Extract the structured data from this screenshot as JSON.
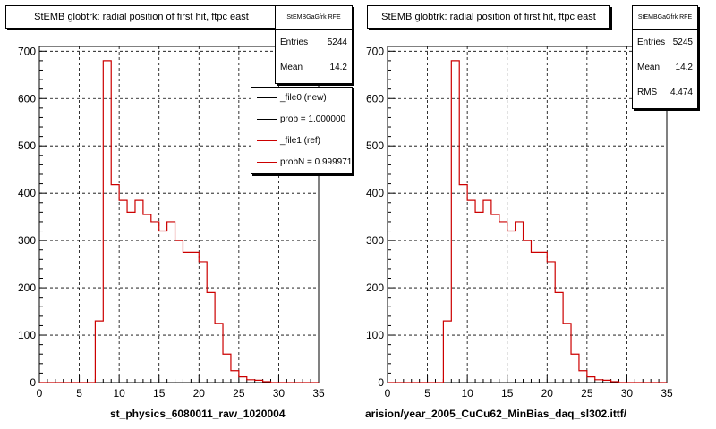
{
  "left_panel": {
    "title": "StEMB globtrk: radial position of first hit, ftpc east",
    "stats": {
      "header": "StEMBGaGfrk RFE",
      "rows": [
        {
          "label": "Entries",
          "value": "5244"
        },
        {
          "label": "Mean",
          "value": "14.2"
        }
      ]
    },
    "legend": [
      {
        "label": "_file0 (new)",
        "color": "#000000"
      },
      {
        "label": "prob = 1.000000",
        "color": "#000000"
      },
      {
        "label": "_file1 (ref)",
        "color": "#cc0000"
      },
      {
        "label": "probN = 0.999971",
        "color": "#cc0000"
      }
    ],
    "xfile": "st_physics_6080011_raw_1020004"
  },
  "right_panel": {
    "title": "StEMB globtrk: radial position of first hit, ftpc east",
    "stats": {
      "header": "StEMBGaGfrk RFE",
      "rows": [
        {
          "label": "Entries",
          "value": "5245"
        },
        {
          "label": "Mean",
          "value": "14.2"
        },
        {
          "label": "RMS",
          "value": "4.474"
        }
      ]
    },
    "xfile": "arision/year_2005_CuCu62_MinBias_daq_sl302.ittf/"
  },
  "colors": {
    "hist_red": "#cc0000",
    "axis": "#000000",
    "grid": "#000000"
  },
  "chart_data": [
    {
      "type": "bar",
      "title": "StEMB globtrk: radial position of first hit, ftpc east",
      "xlim": [
        0,
        35
      ],
      "ylim": [
        0,
        710
      ],
      "xticks": [
        0,
        5,
        10,
        15,
        20,
        25,
        30,
        35
      ],
      "yticks": [
        0,
        100,
        200,
        300,
        400,
        500,
        600,
        700
      ],
      "grid": true,
      "bin_edges": [
        0,
        1,
        2,
        3,
        4,
        5,
        6,
        7,
        8,
        9,
        10,
        11,
        12,
        13,
        14,
        15,
        16,
        17,
        18,
        19,
        20,
        21,
        22,
        23,
        24,
        25,
        26,
        27,
        28,
        29,
        30,
        31,
        32,
        33,
        34,
        35
      ],
      "values": [
        0,
        0,
        0,
        0,
        0,
        0,
        0,
        130,
        680,
        418,
        385,
        360,
        385,
        355,
        340,
        320,
        340,
        300,
        275,
        275,
        255,
        190,
        125,
        60,
        25,
        12,
        6,
        5,
        2,
        0,
        0,
        0,
        0,
        0,
        0
      ],
      "series": [
        {
          "name": "_file0 (new)",
          "color": "#000000"
        },
        {
          "name": "_file1 (ref)",
          "color": "#cc0000"
        }
      ]
    },
    {
      "type": "bar",
      "title": "StEMB globtrk: radial position of first hit, ftpc east",
      "xlim": [
        0,
        35
      ],
      "ylim": [
        0,
        710
      ],
      "xticks": [
        0,
        5,
        10,
        15,
        20,
        25,
        30,
        35
      ],
      "yticks": [
        0,
        100,
        200,
        300,
        400,
        500,
        600,
        700
      ],
      "grid": true,
      "bin_edges": [
        0,
        1,
        2,
        3,
        4,
        5,
        6,
        7,
        8,
        9,
        10,
        11,
        12,
        13,
        14,
        15,
        16,
        17,
        18,
        19,
        20,
        21,
        22,
        23,
        24,
        25,
        26,
        27,
        28,
        29,
        30,
        31,
        32,
        33,
        34,
        35
      ],
      "values": [
        0,
        0,
        0,
        0,
        0,
        0,
        0,
        130,
        680,
        418,
        385,
        360,
        385,
        355,
        340,
        320,
        340,
        300,
        275,
        275,
        255,
        190,
        125,
        60,
        25,
        12,
        6,
        5,
        2,
        0,
        0,
        0,
        0,
        0,
        0
      ],
      "series": [
        {
          "name": "",
          "color": "#cc0000"
        }
      ]
    }
  ]
}
